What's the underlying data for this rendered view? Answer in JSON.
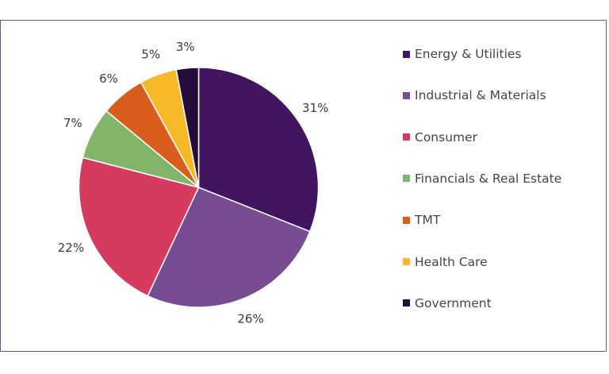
{
  "chart_data": {
    "type": "pie",
    "title": "",
    "start_angle_deg": 0,
    "direction": "clockwise",
    "legend_position": "right",
    "slices": [
      {
        "label": "Energy & Utilities",
        "value": 31,
        "display": "31%",
        "color": "#421560"
      },
      {
        "label": "Industrial & Materials",
        "value": 26,
        "display": "26%",
        "color": "#774c93"
      },
      {
        "label": "Consumer",
        "value": 22,
        "display": "22%",
        "color": "#d63b5f"
      },
      {
        "label": "Financials & Real Estate",
        "value": 7,
        "display": "7%",
        "color": "#82b46a"
      },
      {
        "label": "TMT",
        "value": 6,
        "display": "6%",
        "color": "#d95e1d"
      },
      {
        "label": "Health Care",
        "value": 5,
        "display": "5%",
        "color": "#f7b928"
      },
      {
        "label": "Government",
        "value": 3,
        "display": "3%",
        "color": "#250d3a"
      }
    ]
  }
}
